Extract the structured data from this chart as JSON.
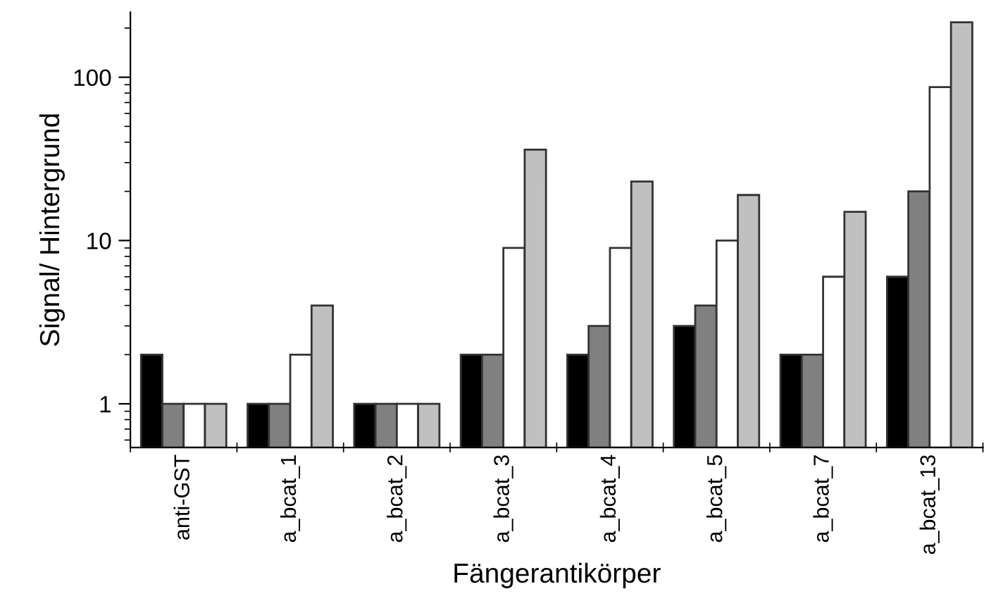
{
  "chart_data": {
    "type": "bar",
    "xlabel": "Fängerantikörper",
    "ylabel": "Signal/ Hintergrund",
    "categories": [
      "anti-GST",
      "a_bcat_1",
      "a_bcat_2",
      "a_bcat_3",
      "a_bcat_4",
      "a_bcat_5",
      "a_bcat_7",
      "a_bcat_13"
    ],
    "series": [
      {
        "color": "#000000",
        "values": [
          2,
          1,
          1,
          2,
          2,
          3,
          2,
          6
        ]
      },
      {
        "color": "#808080",
        "values": [
          1,
          1,
          1,
          2,
          3,
          4,
          2,
          20
        ]
      },
      {
        "color": "#ffffff",
        "values": [
          1,
          2,
          1,
          9,
          9,
          10,
          6,
          87
        ]
      },
      {
        "color": "#c0c0c0",
        "values": [
          1,
          4,
          1,
          36,
          23,
          19,
          15,
          217
        ]
      }
    ],
    "log": "y",
    "ylim": [
      0.54,
      250
    ],
    "yticks": [
      1,
      10,
      100
    ],
    "grid": false,
    "legend": false
  }
}
